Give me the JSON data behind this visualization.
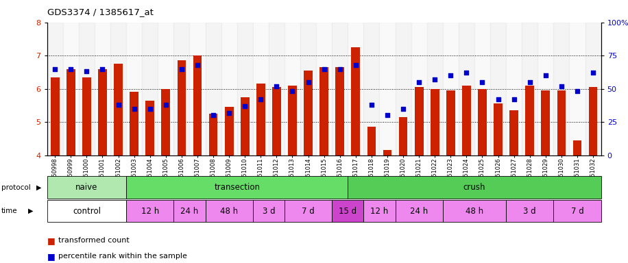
{
  "title": "GDS3374 / 1385617_at",
  "samples": [
    "GSM250998",
    "GSM250999",
    "GSM251000",
    "GSM251001",
    "GSM251002",
    "GSM251003",
    "GSM251004",
    "GSM251005",
    "GSM251006",
    "GSM251007",
    "GSM251008",
    "GSM251009",
    "GSM251010",
    "GSM251011",
    "GSM251012",
    "GSM251013",
    "GSM251014",
    "GSM251015",
    "GSM251016",
    "GSM251017",
    "GSM251018",
    "GSM251019",
    "GSM251020",
    "GSM251021",
    "GSM251022",
    "GSM251023",
    "GSM251024",
    "GSM251025",
    "GSM251026",
    "GSM251027",
    "GSM251028",
    "GSM251029",
    "GSM251030",
    "GSM251031",
    "GSM251032"
  ],
  "bar_values": [
    6.35,
    6.6,
    6.35,
    6.6,
    6.75,
    5.9,
    5.65,
    6.0,
    6.85,
    7.0,
    5.25,
    5.45,
    5.75,
    6.15,
    6.05,
    6.1,
    6.55,
    6.65,
    6.65,
    7.25,
    4.85,
    4.15,
    5.15,
    6.05,
    6.0,
    5.95,
    6.1,
    6.0,
    5.55,
    5.35,
    6.1,
    5.95,
    5.95,
    4.45,
    6.05
  ],
  "percentile_values": [
    65,
    65,
    63,
    65,
    38,
    35,
    35,
    38,
    65,
    68,
    30,
    32,
    37,
    42,
    52,
    48,
    55,
    65,
    65,
    68,
    38,
    30,
    35,
    55,
    57,
    60,
    62,
    55,
    42,
    42,
    55,
    60,
    52,
    48,
    62
  ],
  "ylim_left": [
    4,
    8
  ],
  "ylim_right": [
    0,
    100
  ],
  "yticks_left": [
    4,
    5,
    6,
    7,
    8
  ],
  "yticks_right": [
    0,
    25,
    50,
    75,
    100
  ],
  "bar_color": "#cc2200",
  "dot_color": "#0000cc",
  "bg_color": "#ffffff",
  "protocol_groups": [
    {
      "label": "naive",
      "start": 0,
      "end": 5
    },
    {
      "label": "transection",
      "start": 5,
      "end": 19
    },
    {
      "label": "crush",
      "start": 19,
      "end": 35
    }
  ],
  "protocol_colors": {
    "naive": "#b0e8b0",
    "transection": "#66dd66",
    "crush": "#55cc55"
  },
  "time_groups": [
    {
      "label": "control",
      "start": 0,
      "end": 5
    },
    {
      "label": "12 h",
      "start": 5,
      "end": 8
    },
    {
      "label": "24 h",
      "start": 8,
      "end": 10
    },
    {
      "label": "48 h",
      "start": 10,
      "end": 13
    },
    {
      "label": "3 d",
      "start": 13,
      "end": 15
    },
    {
      "label": "7 d",
      "start": 15,
      "end": 18
    },
    {
      "label": "15 d",
      "start": 18,
      "end": 20
    },
    {
      "label": "12 h",
      "start": 20,
      "end": 22
    },
    {
      "label": "24 h",
      "start": 22,
      "end": 25
    },
    {
      "label": "48 h",
      "start": 25,
      "end": 29
    },
    {
      "label": "3 d",
      "start": 29,
      "end": 32
    },
    {
      "label": "7 d",
      "start": 32,
      "end": 35
    }
  ],
  "time_color_default": "#ee88ee",
  "time_color_control": "#ffffff",
  "time_color_15d": "#cc44cc",
  "axis_color_left": "#cc2200",
  "axis_color_right": "#0000cc"
}
